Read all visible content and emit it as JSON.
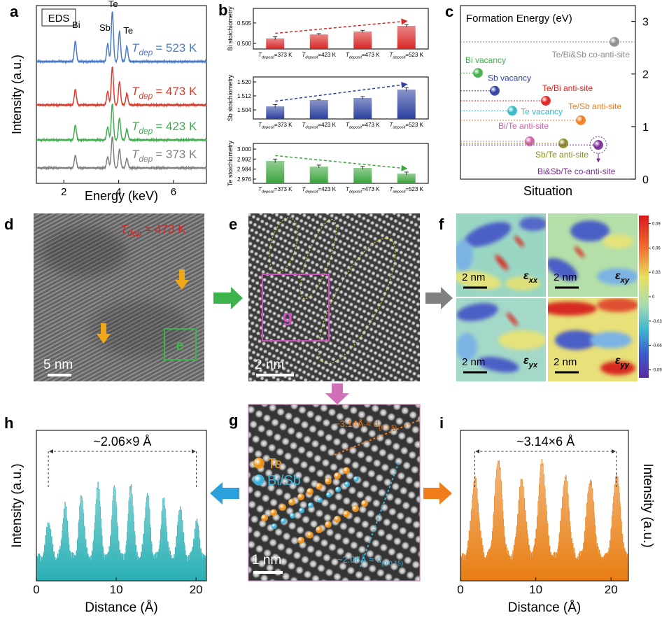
{
  "panel_a": {
    "label": "a",
    "legend": "EDS",
    "ylabel": "Intensity (a.u.)",
    "xlabel": "Energy (keV)",
    "xlim": [
      1,
      7.2
    ],
    "xticks": [
      2,
      4,
      6
    ],
    "peak_labels": [
      "Bi",
      "Sb",
      "Te",
      "Te"
    ],
    "peak_label_x": [
      2.45,
      3.5,
      3.8,
      4.35
    ],
    "lines_x": [
      2.42,
      3.6,
      3.77,
      4.03,
      4.3
    ],
    "lines_height": [
      0.4,
      0.35,
      1,
      0.6,
      0.3
    ],
    "temp_symbol": "T",
    "temp_subscript": "dep",
    "series": [
      {
        "name": "= 523 K",
        "color": "#4a7cc9"
      },
      {
        "name": "= 473 K",
        "color": "#e03a2a"
      },
      {
        "name": "= 423 K",
        "color": "#3fae4b"
      },
      {
        "name": "= 373 K",
        "color": "#808080"
      }
    ]
  },
  "panel_b": {
    "label": "b",
    "cat_symbol": "T",
    "cat_subscript": "deposit",
    "categories": [
      "=373 K",
      "=423 K",
      "=473 K",
      "=523 K"
    ],
    "plots": [
      {
        "ylabel": "Bi stoichiometry",
        "color": "#d92626",
        "ylim": [
          0.4986,
          0.5086
        ],
        "yticks": [
          {
            "value": 0.5,
            "label": "0.500"
          },
          0.505
        ],
        "values": [
          0.5012,
          0.5022,
          0.5029,
          0.5043
        ],
        "errors": [
          0.0004,
          0.0002,
          0.0003,
          0.0003
        ]
      },
      {
        "ylabel": "Sb stoichiometry",
        "color": "#2b3f9e",
        "ylim": [
          1.4988,
          1.5228
        ],
        "yticks": [
          1.504,
          1.512,
          {
            "value": 1.52,
            "label": "1.520"
          }
        ],
        "values": [
          1.506,
          1.5096,
          1.5108,
          1.5156
        ],
        "errors": [
          0.001,
          0.0003,
          0.0008,
          0.001
        ]
      },
      {
        "ylabel": "Te stoichiometry",
        "color": "#3aa33a",
        "ylim": [
          2.9726,
          3.0045
        ],
        "yticks": [
          2.976,
          2.984,
          2.992,
          {
            "value": 3,
            "label": "3.000"
          }
        ],
        "values": [
          2.9905,
          2.986,
          2.9849,
          2.9804
        ],
        "errors": [
          0.0015,
          0.0012,
          0.0012,
          0.0012
        ]
      }
    ]
  },
  "panel_c": {
    "label": "c",
    "title": "Formation Energy (eV)",
    "xlabel": "Situation",
    "ylim": [
      0,
      3.3
    ],
    "yticks": [
      0,
      1,
      2,
      3
    ],
    "categories": [
      "Te/Bi&Sb co-anti-site",
      "Bi vacancy",
      "Sb vacancy",
      "Te/Bi anti-site",
      "Te vacancy",
      "Te/Sb anti-site",
      "Bi/Te anti-site",
      "Sb/Te anti-site",
      "Bi&Sb/Te co-anti-site"
    ],
    "values": [
      2.61,
      2.02,
      1.68,
      1.49,
      1.3,
      1.12,
      0.72,
      0.68,
      0.65
    ],
    "colors": [
      "#8c8c8c",
      "#3fae4b",
      "#2b3f9e",
      "#e0201b",
      "#30b8c8",
      "#f07c1a",
      "#d060a8",
      "#8a8a20",
      "#7a2a9a"
    ]
  },
  "panel_d": {
    "label": "d",
    "temp_symbol": "T",
    "temp_subscript": "dep",
    "temp": "= 473 K",
    "scale_bar": "5 nm",
    "box_label": "e"
  },
  "panel_e": {
    "label": "e",
    "box_label": "g",
    "scale_bar": "2 nm"
  },
  "panel_f": {
    "label": "f",
    "scale_bar": "2 nm",
    "symbol": "ε",
    "components": [
      "xx",
      "xy",
      "yx",
      "yy"
    ],
    "colorbar_lim": [
      -0.1,
      0.1
    ],
    "colorbar_ticks": [
      0.09,
      0.06,
      0.03,
      0,
      -0.03,
      -0.06,
      -0.09
    ]
  },
  "panel_g": {
    "label": "g",
    "spacing_1": "~3.14Å ≈ d",
    "plane_1": "(0 1 5)",
    "spacing_2": "~2.06Å ≈ d",
    "plane_2": "(0 0 15)",
    "legend": [
      "Te",
      "Bi/Sb"
    ],
    "legend_colors": [
      "#f0961e",
      "#3cb4dc"
    ],
    "scale_bar": "1 nm"
  },
  "panel_h": {
    "label": "h",
    "annotation": "~2.06×9 Å",
    "ylabel": "Intensity (a.u.)",
    "xlabel": "Distance (Å)",
    "xlim": [
      0,
      21.3
    ],
    "xticks": [
      0,
      10,
      20
    ],
    "color": "#2ab0b5",
    "peak_x": [
      1.5,
      3.56,
      5.62,
      7.68,
      9.74,
      11.8,
      13.86,
      15.92,
      17.98,
      20.04
    ],
    "peak_heights": [
      0.35,
      0.5,
      0.6,
      0.72,
      0.68,
      0.7,
      0.62,
      0.55,
      0.5,
      0.35
    ]
  },
  "panel_i": {
    "label": "i",
    "annotation": "~3.14×6 Å",
    "ylabel": "Intensity (a.u.)",
    "xlabel": "Distance (Å)",
    "xlim": [
      0,
      22.3
    ],
    "xticks": [
      0,
      10,
      20
    ],
    "color": "#e87d12",
    "peak_x": [
      1.9,
      5.0,
      8.1,
      10.8,
      13.9,
      17.2,
      20.7
    ],
    "peak_heights": [
      0.75,
      0.95,
      0.75,
      0.92,
      0.78,
      0.75,
      0.8
    ]
  }
}
